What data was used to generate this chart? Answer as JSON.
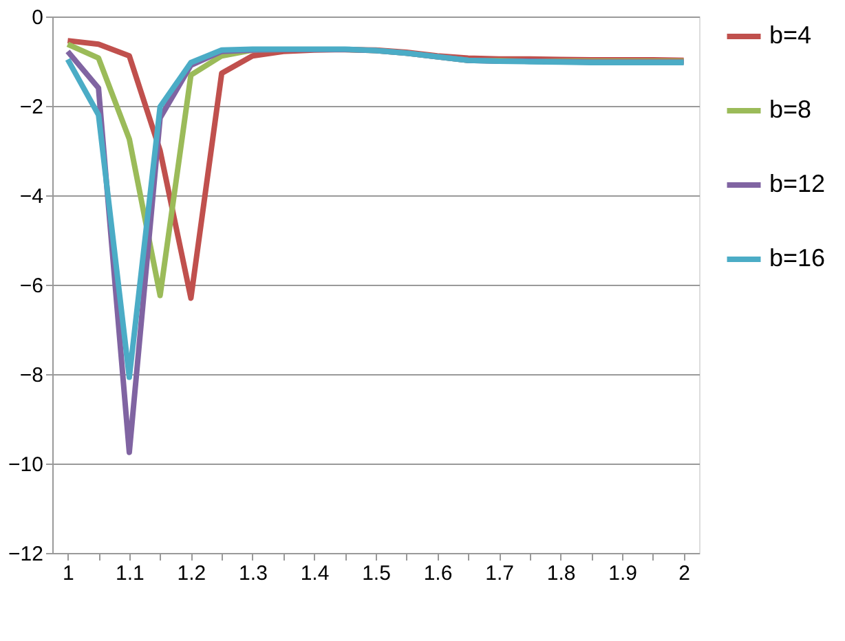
{
  "chart_data": {
    "type": "line",
    "categories": [
      "1",
      null,
      "1.1",
      null,
      "1.2",
      null,
      "1.3",
      null,
      "1.4",
      null,
      "1.5",
      null,
      "1.6",
      null,
      "1.7",
      null,
      "1.8",
      null,
      "1.9",
      null,
      "2"
    ],
    "series": [
      {
        "name": "b=4",
        "color": "#c0504d",
        "values": [
          -0.54,
          -0.62,
          -0.88,
          -3.0,
          -6.3,
          -1.27,
          -0.88,
          -0.78,
          -0.75,
          -0.74,
          -0.75,
          -0.8,
          -0.88,
          -0.93,
          -0.95,
          -0.95,
          -0.96,
          -0.97,
          -0.97,
          -0.97,
          -0.98
        ]
      },
      {
        "name": "b=8",
        "color": "#9bbb59",
        "values": [
          -0.62,
          -0.93,
          -2.74,
          -6.24,
          -1.31,
          -0.88,
          -0.75,
          -0.74,
          -0.74,
          -0.74,
          -0.76,
          -0.82,
          -0.9,
          -0.98,
          -0.99,
          -1.0,
          -1.0,
          -1.0,
          -1.0,
          -1.0,
          -1.0
        ]
      },
      {
        "name": "b=12",
        "color": "#8064a2",
        "values": [
          -0.78,
          -1.6,
          -9.75,
          -2.27,
          -1.09,
          -0.78,
          -0.75,
          -0.74,
          -0.74,
          -0.74,
          -0.76,
          -0.82,
          -0.9,
          -0.98,
          -1.0,
          -1.0,
          -1.01,
          -1.02,
          -1.02,
          -1.02,
          -1.02
        ]
      },
      {
        "name": "b=16",
        "color": "#4bacc6",
        "values": [
          -0.96,
          -2.2,
          -8.07,
          -2.02,
          -1.03,
          -0.75,
          -0.73,
          -0.73,
          -0.73,
          -0.73,
          -0.76,
          -0.82,
          -0.9,
          -0.98,
          -1.0,
          -1.01,
          -1.02,
          -1.03,
          -1.03,
          -1.03,
          -1.03
        ]
      }
    ],
    "ylim": [
      -12,
      0
    ],
    "yticks": [
      -12,
      -10,
      -8,
      -6,
      -4,
      -2,
      0
    ],
    "grid": "y",
    "legend": "right",
    "marker": "none",
    "line_style": "solid"
  }
}
